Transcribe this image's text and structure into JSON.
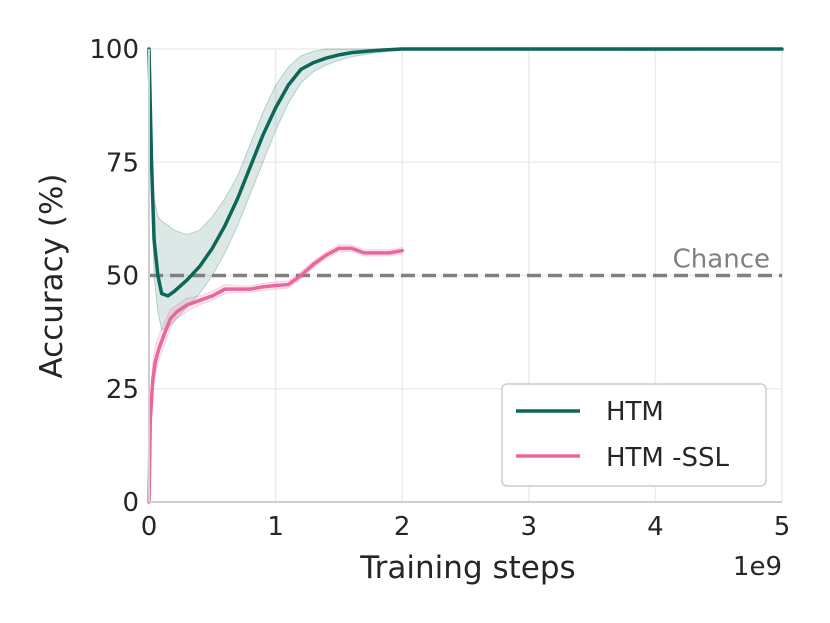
{
  "chart_data": {
    "type": "line",
    "xlabel": "Training steps",
    "ylabel": "Accuracy (%)",
    "x_multiplier_label": "1e9",
    "xlim": [
      0,
      5
    ],
    "ylim": [
      0,
      100
    ],
    "x_ticks": [
      0,
      1,
      2,
      3,
      4,
      5
    ],
    "y_ticks": [
      0,
      25,
      50,
      75,
      100
    ],
    "grid": true,
    "legend_position": "lower-right",
    "reference_line": {
      "label": "Chance",
      "y": 50,
      "style": "dashed",
      "color": "#808080"
    },
    "series": [
      {
        "name": "HTM",
        "color": "#0e6659",
        "x": [
          0,
          0.02,
          0.04,
          0.07,
          0.1,
          0.15,
          0.2,
          0.3,
          0.4,
          0.5,
          0.6,
          0.7,
          0.8,
          0.9,
          1.0,
          1.1,
          1.2,
          1.3,
          1.4,
          1.5,
          1.6,
          1.8,
          2.0,
          2.3,
          2.6,
          3.0,
          3.5,
          4.0,
          4.5,
          5.0
        ],
        "y": [
          100,
          75,
          58,
          50,
          46,
          45.5,
          46.5,
          49,
          52,
          56,
          61,
          67,
          74,
          81,
          87,
          92,
          95.5,
          97,
          98,
          98.7,
          99.2,
          99.7,
          100,
          100,
          100,
          100,
          100,
          100,
          100,
          100
        ],
        "lower": [
          100,
          68,
          50,
          42,
          38,
          38.5,
          40,
          43,
          46,
          50,
          55,
          61,
          68,
          75,
          82,
          88,
          92.5,
          95,
          96.5,
          97.5,
          98.3,
          99.2,
          99.8,
          99.8,
          99.8,
          99.7,
          99.7,
          99.6,
          99.8,
          99.9
        ],
        "upper": [
          100,
          82,
          67,
          63,
          62,
          61,
          60,
          59,
          60,
          63,
          67,
          72,
          79,
          86,
          92,
          96,
          98.5,
          99.5,
          100,
          100,
          100,
          100,
          100,
          100,
          100,
          100,
          100,
          100,
          100,
          100
        ]
      },
      {
        "name": "HTM -SSL",
        "color": "#e8679c",
        "x": [
          0,
          0.01,
          0.03,
          0.05,
          0.08,
          0.12,
          0.17,
          0.22,
          0.3,
          0.4,
          0.5,
          0.6,
          0.7,
          0.8,
          0.9,
          1.0,
          1.1,
          1.15,
          1.2,
          1.3,
          1.4,
          1.5,
          1.6,
          1.7,
          1.8,
          1.9,
          2.0
        ],
        "y": [
          0,
          18,
          27,
          31,
          34,
          37,
          40.5,
          42,
          43.5,
          44.5,
          45.5,
          47,
          47,
          47,
          47.5,
          47.8,
          48,
          49,
          50,
          52.5,
          54.5,
          56,
          56,
          55,
          55,
          55,
          55.5
        ],
        "lower": [
          0,
          15,
          24,
          28,
          31.5,
          34.5,
          38.5,
          40.5,
          42,
          43.5,
          44.5,
          46,
          46.3,
          46.3,
          46.7,
          47,
          47.2,
          48.2,
          49.2,
          51.8,
          53.8,
          55.2,
          55.3,
          54.3,
          54.3,
          54.3,
          54.8
        ],
        "upper": [
          0,
          22,
          31,
          34.5,
          37,
          39.5,
          42.5,
          43.5,
          45,
          45.5,
          46.5,
          48,
          47.7,
          47.7,
          48.3,
          48.6,
          48.8,
          49.8,
          50.8,
          53.2,
          55.2,
          56.8,
          56.7,
          55.7,
          55.7,
          55.7,
          56.2
        ]
      }
    ]
  }
}
